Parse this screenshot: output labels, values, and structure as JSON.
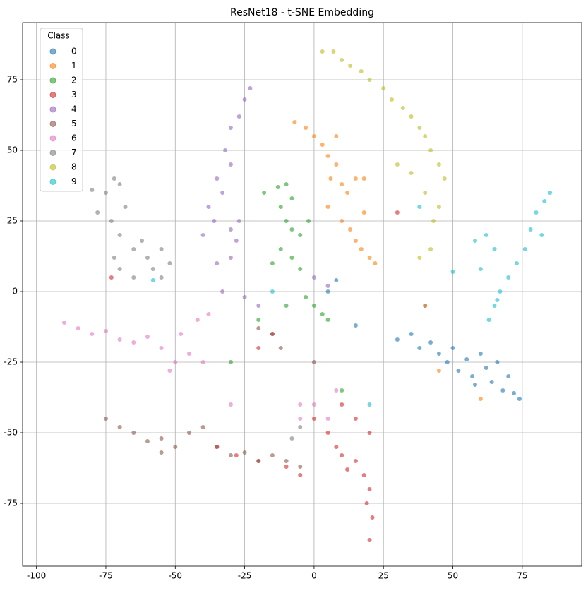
{
  "chart_data": {
    "type": "scatter",
    "title": "ResNet18 - t-SNE Embedding",
    "legend_title": "Class",
    "legend_loc": "upper left",
    "grid": true,
    "xlim": [
      -105,
      96.4
    ],
    "ylim": [
      -97.25,
      95.25
    ],
    "xticks": [
      -100,
      -75,
      -50,
      -25,
      0,
      25,
      50,
      75
    ],
    "yticks": [
      -75,
      -50,
      -25,
      0,
      25,
      50,
      75
    ],
    "series": [
      {
        "name": "0",
        "color": "#1f77b4",
        "x": [
          30,
          35,
          38,
          40,
          42,
          45,
          48,
          50,
          52,
          55,
          57,
          60,
          62,
          64,
          66,
          68,
          70,
          72,
          74,
          58,
          15,
          5,
          8
        ],
        "y": [
          -17,
          -15,
          -20,
          -5,
          -18,
          -22,
          -25,
          -20,
          -28,
          -24,
          -30,
          -22,
          -27,
          -32,
          -25,
          -35,
          -30,
          -36,
          -38,
          -33,
          -12,
          0,
          4
        ]
      },
      {
        "name": "1",
        "color": "#ff7f0e",
        "x": [
          -7,
          -3,
          0,
          3,
          5,
          8,
          6,
          10,
          12,
          15,
          18,
          10,
          13,
          15,
          17,
          20,
          22,
          18,
          5,
          8,
          40,
          60,
          45
        ],
        "y": [
          60,
          58,
          55,
          52,
          48,
          45,
          40,
          38,
          35,
          40,
          40,
          25,
          22,
          18,
          15,
          12,
          10,
          28,
          30,
          55,
          -5,
          -38,
          -28
        ]
      },
      {
        "name": "2",
        "color": "#2ca02c",
        "x": [
          -18,
          -13,
          -10,
          -8,
          -12,
          -10,
          -8,
          -5,
          -12,
          -8,
          -5,
          -15,
          -3,
          0,
          3,
          5,
          -10,
          -20,
          10,
          -30,
          -2
        ],
        "y": [
          35,
          37,
          38,
          33,
          30,
          25,
          22,
          20,
          15,
          12,
          8,
          10,
          -2,
          -5,
          -8,
          -10,
          -5,
          -10,
          -35,
          -25,
          25
        ]
      },
      {
        "name": "3",
        "color": "#d62728",
        "x": [
          20,
          21,
          19,
          20,
          18,
          15,
          12,
          10,
          8,
          5,
          0,
          -5,
          -10,
          -20,
          -28,
          -35,
          15,
          10,
          20,
          -15,
          -20,
          30,
          -73
        ],
        "y": [
          -88,
          -80,
          -75,
          -70,
          -65,
          -60,
          -63,
          -58,
          -55,
          -50,
          -45,
          -65,
          -62,
          -60,
          -58,
          -55,
          -45,
          -40,
          -50,
          -15,
          -20,
          28,
          5
        ]
      },
      {
        "name": "4",
        "color": "#9467bd",
        "x": [
          -23,
          -25,
          -27,
          -30,
          -32,
          -30,
          -35,
          -33,
          -38,
          -36,
          -30,
          -27,
          -40,
          -35,
          -30,
          -33,
          -25,
          -20,
          0,
          5,
          -28
        ],
        "y": [
          72,
          68,
          62,
          58,
          50,
          45,
          40,
          35,
          30,
          25,
          22,
          25,
          20,
          10,
          12,
          0,
          -2,
          -5,
          5,
          2,
          18
        ]
      },
      {
        "name": "5",
        "color": "#8c564b",
        "x": [
          -75,
          -70,
          -65,
          -60,
          -55,
          -50,
          -45,
          -40,
          -35,
          -30,
          -25,
          -20,
          -15,
          -10,
          -5,
          -15,
          -12,
          -20,
          0,
          -55
        ],
        "y": [
          -45,
          -48,
          -50,
          -53,
          -52,
          -55,
          -50,
          -48,
          -55,
          -58,
          -57,
          -60,
          -58,
          -60,
          -62,
          -15,
          -20,
          -13,
          -25,
          -57
        ]
      },
      {
        "name": "6",
        "color": "#e377c2",
        "x": [
          -90,
          -85,
          -80,
          -75,
          -70,
          -65,
          -60,
          -55,
          -50,
          -45,
          -40,
          -42,
          -38,
          -48,
          -52,
          0,
          5,
          -5,
          8,
          -5,
          -30
        ],
        "y": [
          -11,
          -13,
          -15,
          -14,
          -17,
          -18,
          -16,
          -20,
          -25,
          -22,
          -25,
          -10,
          -8,
          -15,
          -28,
          -40,
          -45,
          -40,
          -35,
          -45,
          -40
        ]
      },
      {
        "name": "7",
        "color": "#7f7f7f",
        "x": [
          -80,
          -75,
          -72,
          -70,
          -78,
          -73,
          -68,
          -70,
          -65,
          -62,
          -60,
          -55,
          -52,
          -58,
          -65,
          -70,
          -72,
          -55,
          -5,
          -8
        ],
        "y": [
          36,
          35,
          40,
          38,
          28,
          25,
          30,
          20,
          15,
          18,
          12,
          15,
          10,
          8,
          5,
          8,
          12,
          5,
          -48,
          -52
        ]
      },
      {
        "name": "8",
        "color": "#bcbd22",
        "x": [
          3,
          7,
          10,
          13,
          17,
          20,
          25,
          28,
          32,
          35,
          38,
          40,
          42,
          45,
          47,
          45,
          43,
          40,
          35,
          30,
          38,
          42
        ],
        "y": [
          85,
          85,
          82,
          80,
          78,
          75,
          72,
          68,
          65,
          62,
          58,
          55,
          50,
          45,
          40,
          30,
          25,
          35,
          42,
          45,
          12,
          15
        ]
      },
      {
        "name": "9",
        "color": "#17becf",
        "x": [
          85,
          83,
          80,
          78,
          82,
          76,
          73,
          70,
          67,
          65,
          63,
          66,
          60,
          62,
          58,
          65,
          50,
          -58,
          -15,
          20,
          38
        ],
        "y": [
          35,
          32,
          28,
          22,
          20,
          15,
          10,
          5,
          0,
          -5,
          -10,
          -3,
          8,
          20,
          18,
          15,
          7,
          4,
          0,
          -40,
          30
        ]
      }
    ]
  }
}
